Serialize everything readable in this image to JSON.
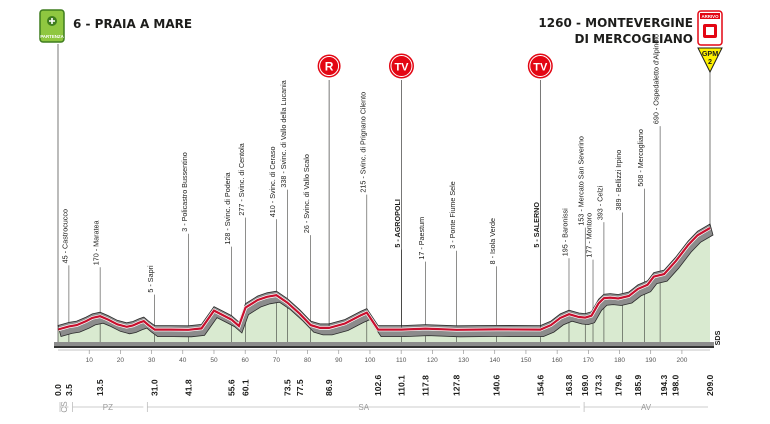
{
  "start": {
    "label": "6 - PRAIA A MARE",
    "badge": "PARTENZA"
  },
  "finish": {
    "label_line1": "1260 - MONTEVERGINE",
    "label_line2": "DI MERCOGLIANO",
    "badge": "ARRIVO",
    "gpm": "GPM",
    "gpm_cat": "2"
  },
  "markers": [
    {
      "letter": "R",
      "km": 86.9
    },
    {
      "letter": "TV",
      "km": 110.1
    },
    {
      "letter": "TV",
      "km": 154.6
    }
  ],
  "side_label": "SDS",
  "provinces": [
    {
      "code": "CS",
      "from": 0,
      "to": 4
    },
    {
      "code": "PZ",
      "from": 4,
      "to": 28
    },
    {
      "code": "SA",
      "from": 28,
      "to": 168
    },
    {
      "code": "AV",
      "from": 168,
      "to": 209
    }
  ],
  "chart_data": {
    "type": "area",
    "title": "",
    "xlabel": "",
    "ylabel": "",
    "xlim": [
      0,
      209
    ],
    "ylim": [
      0,
      1260
    ],
    "x_ticks": [
      10,
      20,
      30,
      40,
      50,
      60,
      70,
      80,
      90,
      100,
      110,
      120,
      130,
      140,
      150,
      160,
      170,
      180,
      190,
      200
    ],
    "km_labels": [
      "0.0",
      "3.5",
      "13.5",
      "31.0",
      "41.8",
      "55.6",
      "60.1",
      "73.5",
      "77.5",
      "86.9",
      "102.6",
      "110.1",
      "117.8",
      "127.8",
      "140.6",
      "154.6",
      "163.8",
      "169.0",
      "173.3",
      "179.6",
      "185.9",
      "194.3",
      "198.0",
      "209.0"
    ],
    "profile": [
      {
        "km": 0,
        "alt": 6
      },
      {
        "km": 3.5,
        "alt": 45
      },
      {
        "km": 6,
        "alt": 60
      },
      {
        "km": 9,
        "alt": 110
      },
      {
        "km": 11,
        "alt": 150
      },
      {
        "km": 13.5,
        "alt": 170
      },
      {
        "km": 16,
        "alt": 130
      },
      {
        "km": 19,
        "alt": 70
      },
      {
        "km": 22,
        "alt": 40
      },
      {
        "km": 24,
        "alt": 55
      },
      {
        "km": 26,
        "alt": 90
      },
      {
        "km": 27.5,
        "alt": 110
      },
      {
        "km": 29,
        "alt": 60
      },
      {
        "km": 31,
        "alt": 5
      },
      {
        "km": 36,
        "alt": 5
      },
      {
        "km": 41.8,
        "alt": 3
      },
      {
        "km": 46,
        "alt": 20
      },
      {
        "km": 50,
        "alt": 240
      },
      {
        "km": 53,
        "alt": 180
      },
      {
        "km": 55.6,
        "alt": 128
      },
      {
        "km": 58,
        "alt": 50
      },
      {
        "km": 60.1,
        "alt": 277
      },
      {
        "km": 64,
        "alt": 370
      },
      {
        "km": 67,
        "alt": 410
      },
      {
        "km": 70,
        "alt": 430
      },
      {
        "km": 73.5,
        "alt": 338
      },
      {
        "km": 77.5,
        "alt": 200
      },
      {
        "km": 81,
        "alt": 60
      },
      {
        "km": 84,
        "alt": 26
      },
      {
        "km": 86.9,
        "alt": 26
      },
      {
        "km": 92,
        "alt": 80
      },
      {
        "km": 97,
        "alt": 180
      },
      {
        "km": 99,
        "alt": 215
      },
      {
        "km": 102.6,
        "alt": 5
      },
      {
        "km": 110.1,
        "alt": 5
      },
      {
        "km": 117.8,
        "alt": 17
      },
      {
        "km": 127.8,
        "alt": 3
      },
      {
        "km": 140.6,
        "alt": 8
      },
      {
        "km": 154.6,
        "alt": 5
      },
      {
        "km": 158,
        "alt": 60
      },
      {
        "km": 161,
        "alt": 150
      },
      {
        "km": 163.8,
        "alt": 195
      },
      {
        "km": 167,
        "alt": 160
      },
      {
        "km": 169,
        "alt": 153
      },
      {
        "km": 171,
        "alt": 177
      },
      {
        "km": 173.3,
        "alt": 330
      },
      {
        "km": 175,
        "alt": 393
      },
      {
        "km": 177,
        "alt": 400
      },
      {
        "km": 179.6,
        "alt": 389
      },
      {
        "km": 183,
        "alt": 420
      },
      {
        "km": 185.9,
        "alt": 508
      },
      {
        "km": 189,
        "alt": 560
      },
      {
        "km": 191,
        "alt": 660
      },
      {
        "km": 194.3,
        "alt": 690
      },
      {
        "km": 198,
        "alt": 850
      },
      {
        "km": 202,
        "alt": 1050
      },
      {
        "km": 205,
        "alt": 1170
      },
      {
        "km": 209,
        "alt": 1260
      }
    ],
    "waypoints": [
      {
        "km": 3.5,
        "text": "45 - Castrocucco",
        "len": 63,
        "bold": false
      },
      {
        "km": 13.5,
        "text": "170 - Maratea",
        "len": 51,
        "bold": false
      },
      {
        "km": 31,
        "text": "5 - Sapri",
        "len": 37,
        "bold": false
      },
      {
        "km": 41.8,
        "text": "3 - Policastro Bussentino",
        "len": 98,
        "bold": false
      },
      {
        "km": 55.6,
        "text": "128 - Svinc. di Poderia",
        "len": 75,
        "bold": false
      },
      {
        "km": 60.1,
        "text": "277 - Svinc. di Centola",
        "len": 92,
        "bold": false
      },
      {
        "km": 70,
        "text": "410 - Svinc. di Ceraso",
        "len": 78,
        "bold": false
      },
      {
        "km": 73.5,
        "text": "338 - Svinc. di Vallo della Lucania",
        "len": 115,
        "bold": false
      },
      {
        "km": 81,
        "text": "26 - Svinc. di Vallo Scalo",
        "len": 92,
        "bold": false
      },
      {
        "km": 99,
        "text": "215 - Svinc. di Prignano Cilento",
        "len": 120,
        "bold": false
      },
      {
        "km": 110.1,
        "text": "5 - AGROPOLI",
        "len": 82,
        "bold": true
      },
      {
        "km": 117.8,
        "text": "17 - Paestum",
        "len": 69,
        "bold": false
      },
      {
        "km": 127.8,
        "text": "3 - Ponte Fiume Sele",
        "len": 81,
        "bold": false
      },
      {
        "km": 140.6,
        "text": "8 - Isola Verde",
        "len": 65,
        "bold": false
      },
      {
        "km": 154.6,
        "text": "5 - SALERNO",
        "len": 82,
        "bold": true
      },
      {
        "km": 163.8,
        "text": "195 - Baronissi",
        "len": 58,
        "bold": false
      },
      {
        "km": 169,
        "text": "153 - Mercato San Severino",
        "len": 92,
        "bold": false
      },
      {
        "km": 171.5,
        "text": "177 - Montoro",
        "len": 58,
        "bold": false
      },
      {
        "km": 175,
        "text": "393 - Celzi",
        "len": 78,
        "bold": false
      },
      {
        "km": 181,
        "text": "389 - Bellizzi Irpino",
        "len": 88,
        "bold": false
      },
      {
        "km": 188,
        "text": "508 - Mercogliano",
        "len": 98,
        "bold": false
      },
      {
        "km": 193,
        "text": "690 - Ospedaletto d'Alpinolo",
        "len": 150,
        "bold": false
      }
    ],
    "colors": {
      "road": "#c8102e",
      "shade": "#8c8c8c",
      "area": "#d9ead0",
      "ink": "#1d1d1b",
      "badge": "#e30613",
      "gpm": "#fff200"
    }
  }
}
